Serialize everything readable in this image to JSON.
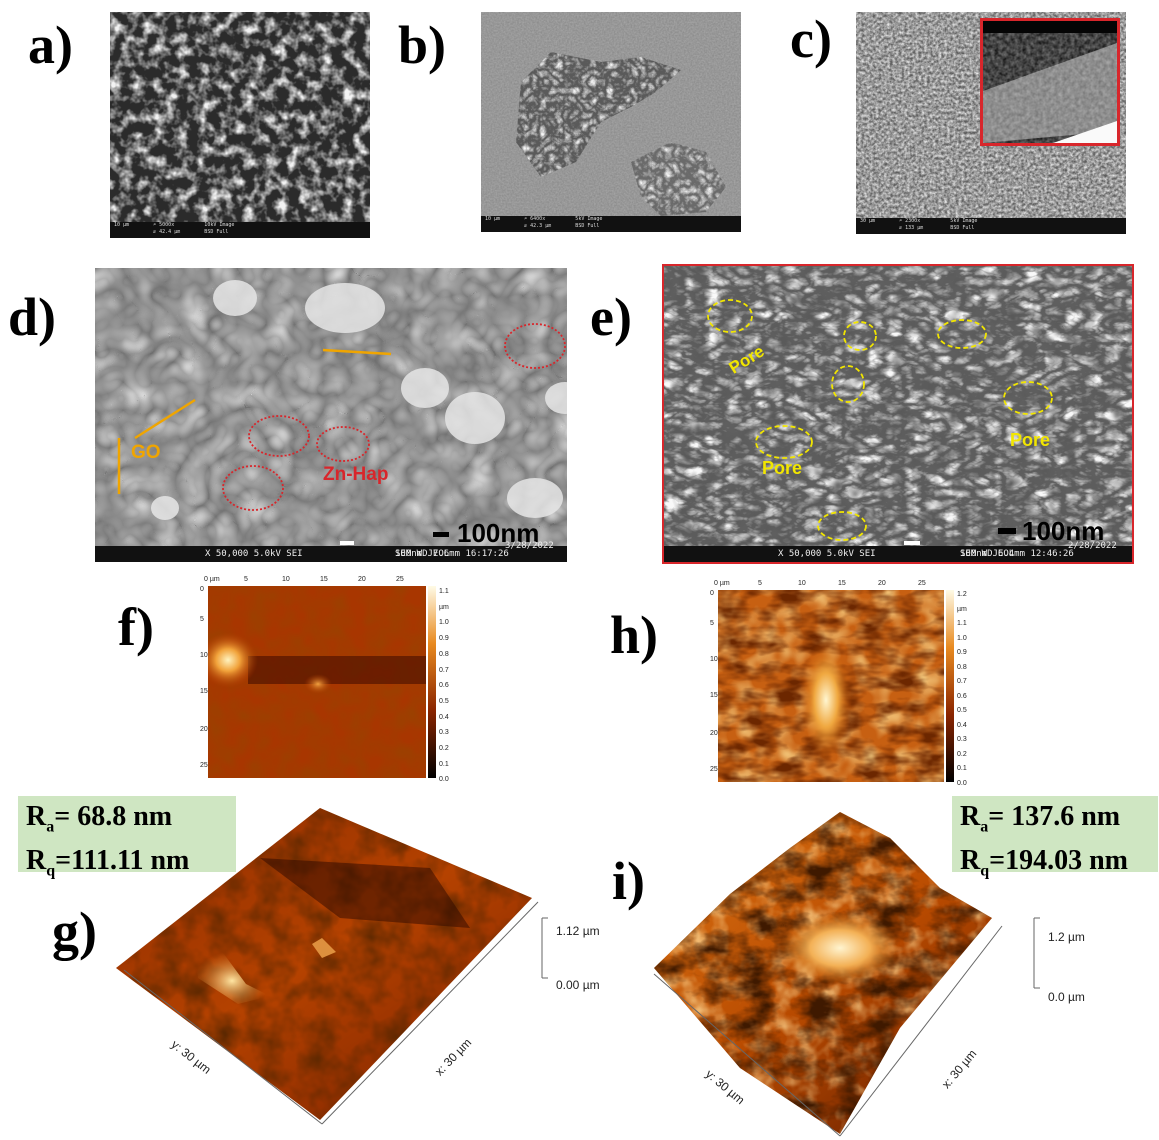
{
  "panels": {
    "a": {
      "label": "a)",
      "bar": "10 µm        ⌕ 5000x          10kV Image\n             ⇵ 42.4 µm        BSD Full"
    },
    "b": {
      "label": "b)",
      "bar": "10 µm        ⌕ 6400x          5kV Image\n             ⇵ 42.3 µm        BSD Full"
    },
    "c": {
      "label": "c)",
      "bar": "30 µm        ⌕ 2300x          5kV Image\n             ⇵ 133 µm         BSD Full"
    },
    "d": {
      "label": "d)",
      "scale": "100nm",
      "go": "GO",
      "znhap": "Zn-Hap",
      "bar_left": "X 50,000    5.0kV   SEI",
      "bar_mid": "100nm JEOL",
      "bar_right": "SEM     WD 7.6mm  16:17:26",
      "bar_date": "3/28/2022"
    },
    "e": {
      "label": "e)",
      "scale": "100nm",
      "pore": "Pore",
      "bar_left": "X 50,000    5.0kV   SEI",
      "bar_mid": "100nm JEOL",
      "bar_right": "SEM     WD 6.4mm  12:46:26",
      "bar_date": "2/28/2022"
    },
    "f": {
      "label": "f)",
      "x_ticks": [
        "0 µm",
        "5",
        "10",
        "15",
        "20",
        "25"
      ],
      "y_ticks": [
        "0",
        "5",
        "10",
        "15",
        "20",
        "25"
      ],
      "cb_ticks": [
        "1.1 µm",
        "1.0",
        "0.9",
        "0.8",
        "0.7",
        "0.6",
        "0.5",
        "0.4",
        "0.3",
        "0.2",
        "0.1",
        "0.0"
      ]
    },
    "h": {
      "label": "h)",
      "x_ticks": [
        "0 µm",
        "5",
        "10",
        "15",
        "20",
        "25"
      ],
      "y_ticks": [
        "0",
        "5",
        "10",
        "15",
        "20",
        "25"
      ],
      "cb_ticks": [
        "1.2 µm",
        "1.1",
        "1.0",
        "0.9",
        "0.8",
        "0.7",
        "0.6",
        "0.5",
        "0.4",
        "0.3",
        "0.2",
        "0.1",
        "0.0"
      ]
    },
    "g": {
      "label": "g)",
      "ra": "= 68.8 nm",
      "rq": "=111.11 nm",
      "z_top": "1.12 µm",
      "z_bottom": "0.00 µm",
      "y_axis": "y: 30 µm",
      "x_axis": "x: 30 µm"
    },
    "i": {
      "label": "i)",
      "ra": "= 137.6 nm",
      "rq": "=194.03 nm",
      "z_top": "1.2 µm",
      "z_bottom": "0.0 µm",
      "y_axis": "y: 30 µm",
      "x_axis": "x: 30 µm"
    }
  },
  "colors": {
    "afm_dark": "#1a0400",
    "afm_mid": "#b33a00",
    "afm_light": "#ffe9a8",
    "roughness_box": "#cfe6c2",
    "frame_red": "#d8262b",
    "pore_yellow": "#f2e600",
    "znhap_red": "#d8262b",
    "go_orange": "#f0a500"
  }
}
